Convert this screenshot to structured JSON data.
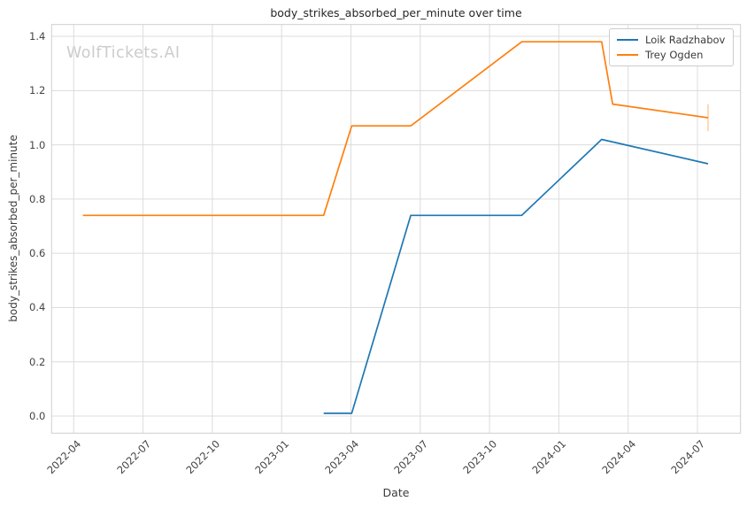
{
  "title": "body_strikes_absorbed_per_minute over time",
  "watermark": "WolfTickets.AI",
  "chart_data": {
    "type": "line",
    "title": "body_strikes_absorbed_per_minute over time",
    "xlabel": "Date",
    "ylabel": "body_strikes_absorbed_per_minute",
    "grid": true,
    "legend_position": "upper right",
    "x_ticks": [
      "2022-04",
      "2022-07",
      "2022-10",
      "2023-01",
      "2023-04",
      "2023-07",
      "2023-10",
      "2024-01",
      "2024-04",
      "2024-07"
    ],
    "y_ticks": [
      0.0,
      0.2,
      0.4,
      0.6,
      0.8,
      1.0,
      1.2,
      1.4
    ],
    "x_range": [
      "2022-03-03",
      "2024-08-26"
    ],
    "y_range": [
      -0.06,
      1.445
    ],
    "series": [
      {
        "name": "Loik Radzhabov",
        "color": "#1f77b4",
        "points": [
          [
            "2023-02-26",
            0.01
          ],
          [
            "2023-04-02",
            0.01
          ],
          [
            "2023-06-19",
            0.74
          ],
          [
            "2023-11-13",
            0.74
          ],
          [
            "2024-02-27",
            1.02
          ],
          [
            "2024-07-15",
            0.93
          ]
        ]
      },
      {
        "name": "Trey Ogden",
        "color": "#ff7f0e",
        "points": [
          [
            "2022-04-13",
            0.74
          ],
          [
            "2023-02-26",
            0.74
          ],
          [
            "2023-04-02",
            1.07
          ],
          [
            "2023-06-19",
            1.07
          ],
          [
            "2023-11-13",
            1.38
          ],
          [
            "2024-02-27",
            1.38
          ],
          [
            "2024-03-11",
            1.15
          ],
          [
            "2024-07-15",
            1.1
          ]
        ],
        "end_marker": {
          "date": "2024-07-15",
          "low": 1.05,
          "high": 1.15
        }
      }
    ]
  }
}
